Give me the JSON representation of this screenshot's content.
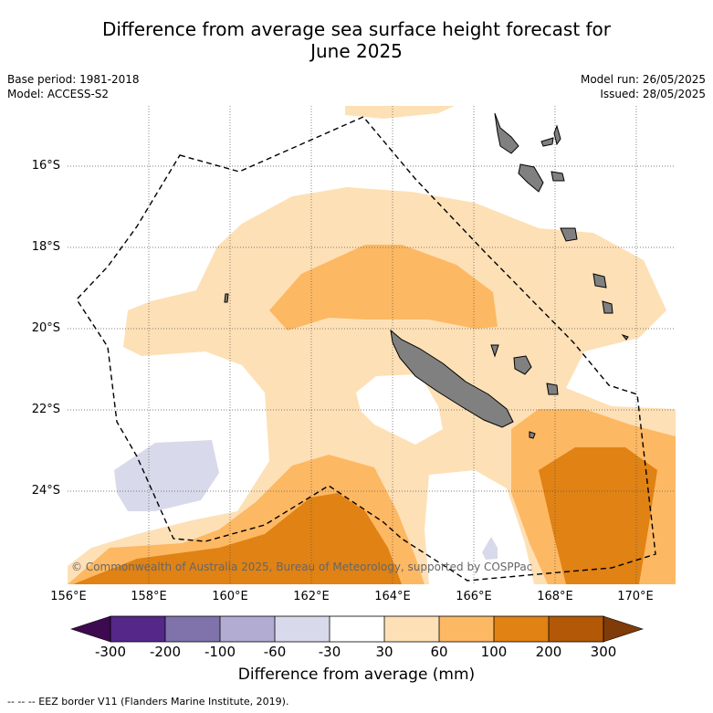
{
  "title_line1": "Difference from average sea surface height forecast for",
  "title_line2": "June 2025",
  "base_period": "Base period: 1981-2018",
  "model": "Model: ACCESS-S2",
  "model_run": "Model run: 26/05/2025",
  "issued": "Issued: 28/05/2025",
  "lat_labels": [
    "16°S",
    "18°S",
    "20°S",
    "22°S",
    "24°S"
  ],
  "lon_labels": [
    "156°E",
    "158°E",
    "160°E",
    "162°E",
    "164°E",
    "166°E",
    "168°E",
    "170°E"
  ],
  "copyright": "© Commonwealth of Australia 2025, Bureau of Meteorology, supported by COSPPac",
  "colorbar": {
    "ticks": [
      "-300",
      "-200",
      "-100",
      "-60",
      "-30",
      "30",
      "60",
      "100",
      "200",
      "300"
    ],
    "title": "Difference from average (mm)",
    "colors": {
      "below_-300": "#3d0a4f",
      "-300_-200": "#542788",
      "-200_-100": "#8073ac",
      "-100_-60": "#b2abd2",
      "-60_-30": "#d8daeb",
      "-30_30": "#ffffff",
      "30_60": "#fee0b6",
      "60_100": "#fdb863",
      "100_200": "#e08214",
      "200_300": "#b35806",
      "above_300": "#7f3b08"
    }
  },
  "footnote": "-- -- -- EEZ border V11 (Flanders Marine Institute, 2019)."
}
